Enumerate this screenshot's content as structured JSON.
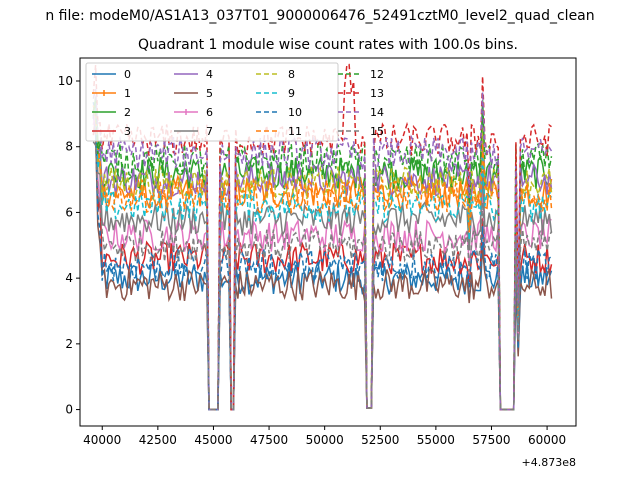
{
  "figure": {
    "suptitle": "n file: modeM0/AS1A13_037T01_9000006476_52491cztM0_level2_quad_clean"
  },
  "chart_data": {
    "type": "line",
    "title": "Quadrant 1 module wise count rates with 100.0s bins.",
    "xlabel": "",
    "ylabel": "",
    "offset_text": "+4.873e8",
    "xlim": [
      39000,
      61300
    ],
    "ylim": [
      -0.5,
      10.7
    ],
    "xticks": [
      40000,
      42500,
      45000,
      47500,
      50000,
      52500,
      55000,
      57500,
      60000
    ],
    "xtick_labels": [
      "40000",
      "42500",
      "45000",
      "47500",
      "50000",
      "52500",
      "55000",
      "57500",
      "60000"
    ],
    "yticks": [
      0,
      2,
      4,
      6,
      8,
      10
    ],
    "ytick_labels": [
      "0",
      "2",
      "4",
      "6",
      "8",
      "10"
    ],
    "grid": false,
    "legend": {
      "placement": "top-left",
      "columns": 4
    },
    "x_start": 39600,
    "x_end": 60200,
    "x_step": 100,
    "gaps": [
      {
        "from": 44800,
        "to": 45200,
        "value": 0
      },
      {
        "from": 45800,
        "to": 45900,
        "value": 0
      },
      {
        "from": 51900,
        "to": 52100,
        "value": 0.05
      },
      {
        "from": 57900,
        "to": 58500,
        "value": 0
      }
    ],
    "dips": [
      {
        "at": 56500,
        "depth": 0.2
      },
      {
        "at": 57100,
        "depth": 0.3
      },
      {
        "at": 58700,
        "depth": 0.1
      }
    ],
    "series": [
      {
        "name": "0",
        "color": "#1f77b4",
        "style": "solid",
        "level": 4.0,
        "spike": 9.2
      },
      {
        "name": "1",
        "color": "#ff7f0e",
        "style": "solid",
        "level": 6.6,
        "spike": 9.0
      },
      {
        "name": "2",
        "color": "#2ca02c",
        "style": "solid",
        "level": 7.2,
        "spike": 9.3
      },
      {
        "name": "3",
        "color": "#d62728",
        "style": "solid",
        "level": 4.6,
        "spike": 8.5
      },
      {
        "name": "4",
        "color": "#9467bd",
        "style": "solid",
        "level": 7.0,
        "spike": 8.8
      },
      {
        "name": "5",
        "color": "#8c564b",
        "style": "solid",
        "level": 3.8,
        "spike": 8.0
      },
      {
        "name": "6",
        "color": "#e377c2",
        "style": "solid",
        "level": 5.3,
        "spike": 8.6
      },
      {
        "name": "7",
        "color": "#7f7f7f",
        "style": "solid",
        "level": 5.8,
        "spike": 8.7
      },
      {
        "name": "8",
        "color": "#bcbd22",
        "style": "dashed",
        "level": 6.9,
        "spike": 9.0
      },
      {
        "name": "9",
        "color": "#17becf",
        "style": "dashed",
        "level": 6.2,
        "spike": 8.9
      },
      {
        "name": "10",
        "color": "#1f77b4",
        "style": "dashed",
        "level": 4.4,
        "spike": 8.2
      },
      {
        "name": "11",
        "color": "#ff7f0e",
        "style": "dashed",
        "level": 6.5,
        "spike": 8.9
      },
      {
        "name": "12",
        "color": "#2ca02c",
        "style": "dashed",
        "level": 7.6,
        "spike": 9.1
      },
      {
        "name": "13",
        "color": "#d62728",
        "style": "dashed",
        "level": 8.2,
        "spike": 10.1
      },
      {
        "name": "14",
        "color": "#9467bd",
        "style": "dashed",
        "level": 7.8,
        "spike": 9.6
      },
      {
        "name": "15",
        "color": "#7f7f7f",
        "style": "dashed",
        "level": 5.0,
        "spike": 8.4
      }
    ]
  }
}
